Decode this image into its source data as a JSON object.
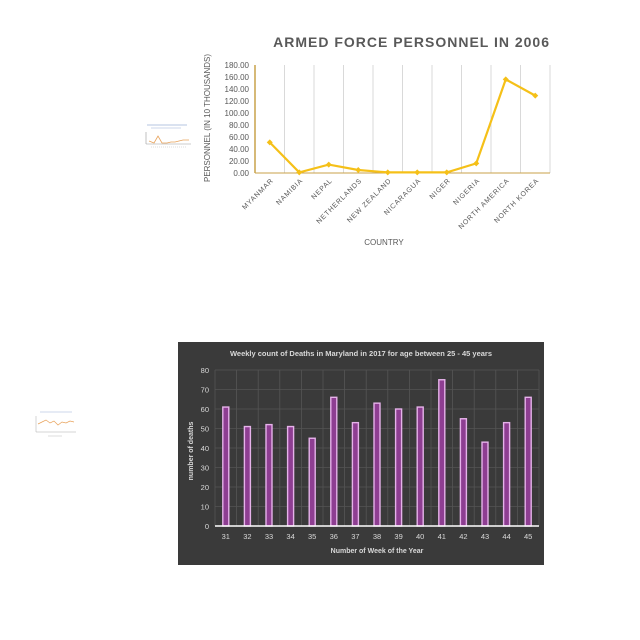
{
  "charts": {
    "armed_forces": {
      "title": "ARMED FORCE PERSONNEL IN 2006",
      "xlabel": "COUNTRY",
      "ylabel": "PERSONNEL (IN 10 THOUSANDS)",
      "colors": {
        "line": "#F5C018",
        "axis": "#C9A24A",
        "grid": "#D9D9D9",
        "text": "#595959",
        "title": "#595959"
      }
    },
    "maryland_deaths": {
      "title": "Weekly count of Deaths in Maryland in 2017 for age between 25 - 45 years",
      "xlabel": "Number of Week of the Year",
      "ylabel": "number of deaths",
      "colors": {
        "background": "#3A3A3A",
        "bar_fill": "#8E3E92",
        "bar_edge": "#E6B2EA",
        "grid": "#555555",
        "text": "#D9D9D9"
      }
    }
  },
  "chart_data": [
    {
      "type": "line",
      "title": "ARMED FORCE PERSONNEL IN 2006",
      "xlabel": "COUNTRY",
      "ylabel": "PERSONNEL (IN 10 THOUSANDS)",
      "categories": [
        "MYANMAR",
        "NAMIBIA",
        "NEPAL",
        "NETHERLANDS",
        "NEW ZEALAND",
        "NICARAGUA",
        "NIGER",
        "NIGERIA",
        "NORTH AMERICA",
        "NORTH KOREA"
      ],
      "values": [
        51,
        1,
        14,
        5,
        1,
        1,
        1,
        16,
        156,
        129
      ],
      "yticks": [
        "0.00",
        "20.00",
        "40.00",
        "60.00",
        "80.00",
        "100.00",
        "120.00",
        "140.00",
        "160.00",
        "180.00"
      ],
      "ylim": [
        0,
        180
      ],
      "grid": "vertical"
    },
    {
      "type": "bar",
      "title": "Weekly count of Deaths in Maryland in 2017 for age between 25 - 45 years",
      "xlabel": "Number of Week of the Year",
      "ylabel": "number of deaths",
      "categories": [
        "31",
        "32",
        "33",
        "34",
        "35",
        "36",
        "37",
        "38",
        "39",
        "40",
        "41",
        "42",
        "43",
        "44",
        "45"
      ],
      "values": [
        61,
        51,
        52,
        51,
        45,
        66,
        53,
        63,
        60,
        61,
        75,
        55,
        43,
        53,
        66
      ],
      "yticks": [
        "0",
        "10",
        "20",
        "30",
        "40",
        "50",
        "60",
        "70",
        "80"
      ],
      "ylim": [
        0,
        80
      ],
      "grid": "both"
    }
  ]
}
